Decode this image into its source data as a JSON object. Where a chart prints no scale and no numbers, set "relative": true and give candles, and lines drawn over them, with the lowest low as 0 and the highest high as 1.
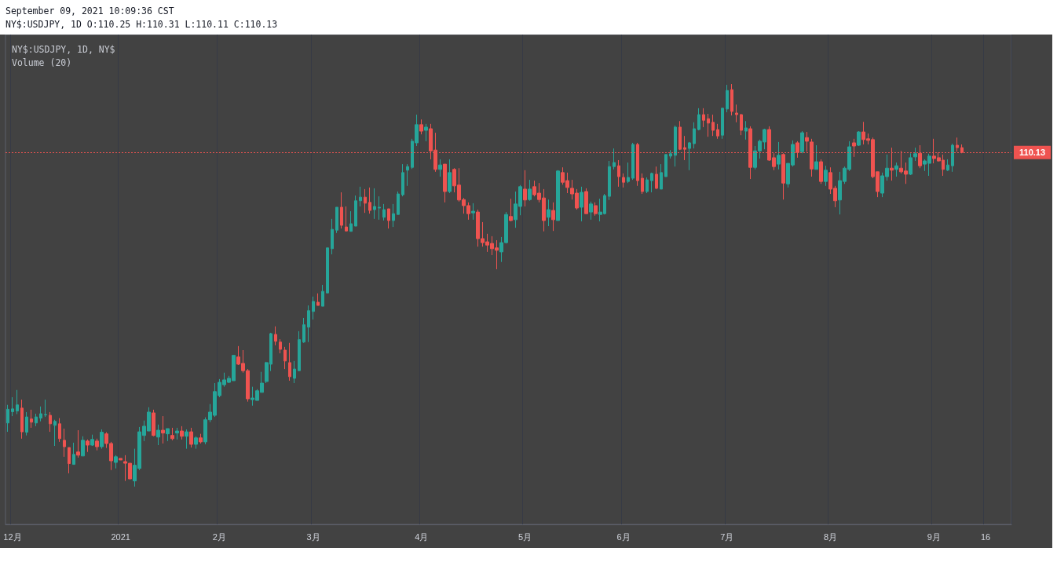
{
  "chart_data": {
    "type": "candlestick",
    "title": "September 09, 2021 10:09:36 CST",
    "subtitle": "NY$:USDJPY, 1D O:110.25 H:110.31 L:110.11 C:110.13",
    "annotations": [
      "NY$:USDJPY, 1D, NY$",
      "Volume (20)",
      "110.13"
    ],
    "relative": true,
    "grid": "x",
    "colors": [
      "#26a69a",
      "#26a69a",
      "#26a69a",
      "#ef5350",
      "#26a69a",
      "#ef5350",
      "#26a69a",
      "#26a69a",
      "#26a69a",
      "#ef5350",
      "#26a69a",
      "#ef5350",
      "#ef5350",
      "#ef5350",
      "#26a69a",
      "#ef5350",
      "#26a69a",
      "#ef5350",
      "#26a69a",
      "#ef5350",
      "#26a69a",
      "#ef5350",
      "#ef5350",
      "#26a69a",
      "#ef5350",
      "#ef5350",
      "#ef5350",
      "#26a69a",
      "#26a69a",
      "#26a69a",
      "#26a69a",
      "#ef5350",
      "#26a69a",
      "#ef5350",
      "#26a69a",
      "#ef5350",
      "#26a69a",
      "#ef5350",
      "#26a69a",
      "#ef5350",
      "#26a69a",
      "#ef5350",
      "#26a69a",
      "#26a69a",
      "#26a69a",
      "#26a69a",
      "#26a69a",
      "#26a69a",
      "#26a69a",
      "#ef5350",
      "#ef5350",
      "#ef5350",
      "#26a69a",
      "#26a69a",
      "#26a69a",
      "#26a69a",
      "#26a69a",
      "#ef5350",
      "#ef5350",
      "#ef5350",
      "#ef5350",
      "#26a69a",
      "#26a69a",
      "#26a69a",
      "#26a69a",
      "#26a69a",
      "#ef5350",
      "#26a69a",
      "#26a69a",
      "#26a69a",
      "#26a69a",
      "#ef5350",
      "#ef5350",
      "#26a69a",
      "#26a69a",
      "#26a69a",
      "#ef5350",
      "#ef5350",
      "#26a69a",
      "#26a69a",
      "#26a69a",
      "#ef5350",
      "#26a69a",
      "#26a69a",
      "#26a69a",
      "#26a69a",
      "#26a69a",
      "#26a69a",
      "#ef5350",
      "#26a69a",
      "#ef5350",
      "#ef5350",
      "#26a69a",
      "#ef5350",
      "#26a69a",
      "#ef5350",
      "#ef5350",
      "#ef5350",
      "#ef5350",
      "#26a69a",
      "#ef5350",
      "#ef5350",
      "#ef5350",
      "#ef5350",
      "#ef5350",
      "#26a69a",
      "#26a69a",
      "#ef5350",
      "#26a69a",
      "#26a69a",
      "#ef5350",
      "#26a69a",
      "#ef5350",
      "#ef5350",
      "#ef5350",
      "#26a69a",
      "#ef5350",
      "#26a69a",
      "#ef5350",
      "#ef5350",
      "#ef5350",
      "#ef5350",
      "#26a69a",
      "#ef5350",
      "#26a69a",
      "#ef5350",
      "#26a69a",
      "#26a69a",
      "#26a69a",
      "#26a69a",
      "#ef5350",
      "#ef5350",
      "#26a69a",
      "#26a69a",
      "#ef5350",
      "#ef5350",
      "#26a69a",
      "#26a69a",
      "#ef5350",
      "#26a69a",
      "#26a69a",
      "#26a69a",
      "#26a69a",
      "#ef5350",
      "#ef5350",
      "#26a69a",
      "#26a69a",
      "#26a69a",
      "#ef5350",
      "#ef5350",
      "#ef5350",
      "#ef5350",
      "#26a69a",
      "#26a69a",
      "#ef5350",
      "#ef5350",
      "#ef5350",
      "#26a69a",
      "#ef5350",
      "#26a69a",
      "#26a69a",
      "#26a69a",
      "#ef5350",
      "#ef5350",
      "#26a69a",
      "#ef5350",
      "#26a69a",
      "#26a69a",
      "#ef5350",
      "#26a69a",
      "#ef5350",
      "#ef5350",
      "#26a69a",
      "#ef5350",
      "#26a69a",
      "#ef5350",
      "#ef5350",
      "#26a69a",
      "#26a69a",
      "#26a69a",
      "#ef5350",
      "#26a69a",
      "#ef5350",
      "#ef5350",
      "#ef5350",
      "#ef5350",
      "#26a69a",
      "#26a69a",
      "#ef5350",
      "#26a69a",
      "#ef5350",
      "#ef5350",
      "#26a69a",
      "#26a69a",
      "#ef5350",
      "#26a69a",
      "#26a69a",
      "#ef5350",
      "#ef5350",
      "#ef5350",
      "#26a69a",
      "#26a69a",
      "#ef5350",
      "#ef5350",
      null,
      null,
      null,
      null,
      null,
      null,
      null,
      null,
      null,
      null
    ],
    "ref_lines": [
      {
        "axis": "y",
        "value": 0.83,
        "color": "#ef5350",
        "line_style": "dotted"
      }
    ],
    "categories": [
      null,
      "12月",
      null,
      null,
      null,
      null,
      null,
      null,
      null,
      null,
      null,
      null,
      null,
      null,
      null,
      null,
      null,
      null,
      null,
      null,
      null,
      null,
      null,
      null,
      "2021",
      null,
      null,
      null,
      null,
      null,
      null,
      null,
      null,
      null,
      null,
      null,
      null,
      null,
      null,
      null,
      null,
      null,
      null,
      null,
      null,
      "2月",
      null,
      null,
      null,
      null,
      null,
      null,
      null,
      null,
      null,
      null,
      null,
      null,
      null,
      null,
      null,
      null,
      null,
      null,
      null,
      "3月",
      null,
      null,
      null,
      null,
      null,
      null,
      null,
      null,
      null,
      null,
      null,
      null,
      null,
      null,
      null,
      null,
      null,
      null,
      null,
      null,
      null,
      null,
      "4月",
      null,
      null,
      null,
      null,
      null,
      null,
      null,
      null,
      null,
      null,
      null,
      null,
      null,
      null,
      null,
      null,
      null,
      null,
      null,
      null,
      null,
      "5月",
      null,
      null,
      null,
      null,
      null,
      null,
      null,
      null,
      null,
      null,
      null,
      null,
      null,
      null,
      null,
      null,
      null,
      null,
      null,
      null,
      "6月",
      null,
      null,
      null,
      null,
      null,
      null,
      null,
      null,
      null,
      null,
      null,
      null,
      null,
      null,
      null,
      null,
      null,
      null,
      null,
      null,
      null,
      "7月",
      null,
      null,
      null,
      null,
      null,
      null,
      null,
      null,
      null,
      null,
      null,
      null,
      null,
      null,
      null,
      null,
      null,
      null,
      null,
      null,
      null,
      "8月",
      null,
      null,
      null,
      null,
      null,
      null,
      null,
      null,
      null,
      null,
      null,
      null,
      null,
      null,
      null,
      null,
      null,
      null,
      null,
      null,
      null,
      "9月",
      null,
      null,
      null,
      null,
      null,
      null,
      null,
      null,
      null,
      null,
      "16",
      null,
      null,
      null,
      null,
      null
    ],
    "ohlc": [
      [
        0.158,
        0.203,
        0.136,
        0.192
      ],
      [
        0.186,
        0.222,
        0.175,
        0.193
      ],
      [
        0.188,
        0.24,
        0.18,
        0.203
      ],
      [
        0.195,
        0.216,
        0.119,
        0.136
      ],
      [
        0.135,
        0.185,
        0.127,
        0.173
      ],
      [
        0.168,
        0.191,
        0.146,
        0.16
      ],
      [
        0.158,
        0.181,
        0.15,
        0.173
      ],
      [
        0.17,
        0.199,
        0.162,
        0.181
      ],
      [
        0.178,
        0.216,
        0.173,
        0.179
      ],
      [
        0.177,
        0.185,
        0.136,
        0.156
      ],
      [
        0.152,
        0.166,
        0.101,
        0.162
      ],
      [
        0.156,
        0.17,
        0.111,
        0.119
      ],
      [
        0.115,
        0.144,
        0.074,
        0.099
      ],
      [
        0.097,
        0.097,
        0.033,
        0.057
      ],
      [
        0.055,
        0.109,
        0.055,
        0.08
      ],
      [
        0.086,
        0.14,
        0.072,
        0.078
      ],
      [
        0.076,
        0.125,
        0.076,
        0.115
      ],
      [
        0.113,
        0.117,
        0.086,
        0.103
      ],
      [
        0.103,
        0.129,
        0.101,
        0.117
      ],
      [
        0.113,
        0.119,
        0.09,
        0.099
      ],
      [
        0.099,
        0.142,
        0.094,
        0.135
      ],
      [
        0.131,
        0.135,
        0.096,
        0.107
      ],
      [
        0.107,
        0.111,
        0.041,
        0.064
      ],
      [
        0.06,
        0.078,
        0.045,
        0.074
      ],
      [
        0.07,
        0.07,
        0.066,
        0.066
      ],
      [
        0.062,
        0.078,
        0.014,
        0.058
      ],
      [
        0.058,
        0.058,
        0.019,
        0.019
      ],
      [
        0.014,
        0.094,
        0,
        0.053
      ],
      [
        0.045,
        0.148,
        0.041,
        0.136
      ],
      [
        0.127,
        0.164,
        0.113,
        0.15
      ],
      [
        0.138,
        0.197,
        0.138,
        0.185
      ],
      [
        0.183,
        0.191,
        0.125,
        0.127
      ],
      [
        0.123,
        0.154,
        0.103,
        0.14
      ],
      [
        0.14,
        0.175,
        0.107,
        0.133
      ],
      [
        0.131,
        0.144,
        0.113,
        0.144
      ],
      [
        0.127,
        0.146,
        0.115,
        0.119
      ],
      [
        0.133,
        0.146,
        0.117,
        0.138
      ],
      [
        0.138,
        0.15,
        0.117,
        0.125
      ],
      [
        0.125,
        0.142,
        0.094,
        0.136
      ],
      [
        0.136,
        0.146,
        0.097,
        0.105
      ],
      [
        0.105,
        0.125,
        0.094,
        0.121
      ],
      [
        0.121,
        0.131,
        0.107,
        0.111
      ],
      [
        0.111,
        0.172,
        0.105,
        0.166
      ],
      [
        0.166,
        0.205,
        0.16,
        0.185
      ],
      [
        0.177,
        0.257,
        0.173,
        0.236
      ],
      [
        0.226,
        0.267,
        0.222,
        0.259
      ],
      [
        0.253,
        0.283,
        0.248,
        0.265
      ],
      [
        0.259,
        0.275,
        0.257,
        0.269
      ],
      [
        0.263,
        0.326,
        0.263,
        0.326
      ],
      [
        0.322,
        0.349,
        0.302,
        0.304
      ],
      [
        0.306,
        0.339,
        0.283,
        0.288
      ],
      [
        0.288,
        0.292,
        0.211,
        0.218
      ],
      [
        0.216,
        0.248,
        0.201,
        0.22
      ],
      [
        0.214,
        0.242,
        0.214,
        0.238
      ],
      [
        0.234,
        0.285,
        0.234,
        0.257
      ],
      [
        0.261,
        0.31,
        0.257,
        0.308
      ],
      [
        0.304,
        0.382,
        0.287,
        0.38
      ],
      [
        0.378,
        0.398,
        0.351,
        0.361
      ],
      [
        0.359,
        0.366,
        0.331,
        0.341
      ],
      [
        0.339,
        0.347,
        0.292,
        0.312
      ],
      [
        0.308,
        0.357,
        0.263,
        0.273
      ],
      [
        0.269,
        0.312,
        0.257,
        0.292
      ],
      [
        0.288,
        0.386,
        0.287,
        0.365
      ],
      [
        0.359,
        0.419,
        0.357,
        0.402
      ],
      [
        0.396,
        0.45,
        0.359,
        0.437
      ],
      [
        0.435,
        0.472,
        0.415,
        0.46
      ],
      [
        0.458,
        0.48,
        0.45,
        0.45
      ],
      [
        0.448,
        0.501,
        0.448,
        0.485
      ],
      [
        0.481,
        0.593,
        0.481,
        0.593
      ],
      [
        0.591,
        0.665,
        0.577,
        0.639
      ],
      [
        0.637,
        0.694,
        0.63,
        0.694
      ],
      [
        0.694,
        0.731,
        0.641,
        0.649
      ],
      [
        0.645,
        0.696,
        0.634,
        0.635
      ],
      [
        0.634,
        0.684,
        0.634,
        0.653
      ],
      [
        0.647,
        0.723,
        0.647,
        0.71
      ],
      [
        0.71,
        0.745,
        0.696,
        0.719
      ],
      [
        0.719,
        0.739,
        0.68,
        0.704
      ],
      [
        0.706,
        0.743,
        0.678,
        0.686
      ],
      [
        0.688,
        0.741,
        0.665,
        0.696
      ],
      [
        0.692,
        0.721,
        0.663,
        0.694
      ],
      [
        0.669,
        0.702,
        0.661,
        0.688
      ],
      [
        0.69,
        0.69,
        0.641,
        0.661
      ],
      [
        0.661,
        0.702,
        0.645,
        0.678
      ],
      [
        0.676,
        0.733,
        0.676,
        0.727
      ],
      [
        0.725,
        0.801,
        0.721,
        0.78
      ],
      [
        0.786,
        0.801,
        0.747,
        0.795
      ],
      [
        0.793,
        0.864,
        0.789,
        0.858
      ],
      [
        0.854,
        0.924,
        0.846,
        0.899
      ],
      [
        0.899,
        0.912,
        0.875,
        0.883
      ],
      [
        0.885,
        0.901,
        0.858,
        0.893
      ],
      [
        0.889,
        0.901,
        0.813,
        0.834
      ],
      [
        0.836,
        0.879,
        0.782,
        0.788
      ],
      [
        0.788,
        0.813,
        0.77,
        0.799
      ],
      [
        0.801,
        0.801,
        0.706,
        0.733
      ],
      [
        0.733,
        0.813,
        0.729,
        0.78
      ],
      [
        0.788,
        0.791,
        0.731,
        0.747
      ],
      [
        0.749,
        0.791,
        0.708,
        0.712
      ],
      [
        0.713,
        0.717,
        0.678,
        0.698
      ],
      [
        0.698,
        0.706,
        0.663,
        0.678
      ],
      [
        0.68,
        0.704,
        0.663,
        0.684
      ],
      [
        0.682,
        0.688,
        0.596,
        0.616
      ],
      [
        0.616,
        0.657,
        0.596,
        0.606
      ],
      [
        0.608,
        0.628,
        0.583,
        0.6
      ],
      [
        0.604,
        0.622,
        0.575,
        0.591
      ],
      [
        0.593,
        0.612,
        0.54,
        0.587
      ],
      [
        0.583,
        0.62,
        0.558,
        0.606
      ],
      [
        0.606,
        0.682,
        0.604,
        0.676
      ],
      [
        0.671,
        0.715,
        0.659,
        0.661
      ],
      [
        0.663,
        0.733,
        0.643,
        0.702
      ],
      [
        0.696,
        0.749,
        0.674,
        0.745
      ],
      [
        0.739,
        0.786,
        0.696,
        0.712
      ],
      [
        0.713,
        0.762,
        0.71,
        0.739
      ],
      [
        0.745,
        0.76,
        0.721,
        0.725
      ],
      [
        0.729,
        0.754,
        0.706,
        0.713
      ],
      [
        0.717,
        0.739,
        0.634,
        0.661
      ],
      [
        0.669,
        0.713,
        0.647,
        0.688
      ],
      [
        0.686,
        0.706,
        0.635,
        0.663
      ],
      [
        0.661,
        0.786,
        0.661,
        0.784
      ],
      [
        0.78,
        0.793,
        0.75,
        0.756
      ],
      [
        0.76,
        0.78,
        0.729,
        0.743
      ],
      [
        0.741,
        0.762,
        0.713,
        0.727
      ],
      [
        0.729,
        0.739,
        0.688,
        0.692
      ],
      [
        0.694,
        0.745,
        0.659,
        0.731
      ],
      [
        0.733,
        0.741,
        0.678,
        0.678
      ],
      [
        0.682,
        0.708,
        0.663,
        0.702
      ],
      [
        0.698,
        0.706,
        0.673,
        0.678
      ],
      [
        0.676,
        0.715,
        0.659,
        0.682
      ],
      [
        0.678,
        0.727,
        0.676,
        0.723
      ],
      [
        0.721,
        0.809,
        0.712,
        0.795
      ],
      [
        0.795,
        0.84,
        0.788,
        0.805
      ],
      [
        0.797,
        0.811,
        0.745,
        0.77
      ],
      [
        0.768,
        0.778,
        0.743,
        0.756
      ],
      [
        0.758,
        0.805,
        0.754,
        0.768
      ],
      [
        0.766,
        0.854,
        0.762,
        0.85
      ],
      [
        0.85,
        0.854,
        0.747,
        0.76
      ],
      [
        0.766,
        0.778,
        0.727,
        0.733
      ],
      [
        0.733,
        0.768,
        0.729,
        0.762
      ],
      [
        0.76,
        0.78,
        0.731,
        0.778
      ],
      [
        0.776,
        0.795,
        0.739,
        0.741
      ],
      [
        0.739,
        0.801,
        0.739,
        0.78
      ],
      [
        0.77,
        0.825,
        0.77,
        0.825
      ],
      [
        0.821,
        0.836,
        0.815,
        0.827
      ],
      [
        0.823,
        0.897,
        0.795,
        0.893
      ],
      [
        0.893,
        0.908,
        0.836,
        0.838
      ],
      [
        0.842,
        0.871,
        0.811,
        0.838
      ],
      [
        0.84,
        0.856,
        0.786,
        0.854
      ],
      [
        0.852,
        0.905,
        0.84,
        0.889
      ],
      [
        0.887,
        0.94,
        0.885,
        0.924
      ],
      [
        0.924,
        0.94,
        0.893,
        0.91
      ],
      [
        0.914,
        0.926,
        0.869,
        0.903
      ],
      [
        0.905,
        0.924,
        0.871,
        0.885
      ],
      [
        0.887,
        0.901,
        0.864,
        0.871
      ],
      [
        0.873,
        0.94,
        0.864,
        0.94
      ],
      [
        0.938,
        0.998,
        0.93,
        0.984
      ],
      [
        0.986,
        1.0,
        0.922,
        0.932
      ],
      [
        0.928,
        0.949,
        0.905,
        0.924
      ],
      [
        0.924,
        0.926,
        0.873,
        0.885
      ],
      [
        0.883,
        0.908,
        0.862,
        0.891
      ],
      [
        0.889,
        0.895,
        0.764,
        0.793
      ],
      [
        0.793,
        0.846,
        0.788,
        0.834
      ],
      [
        0.834,
        0.862,
        0.815,
        0.858
      ],
      [
        0.856,
        0.889,
        0.838,
        0.887
      ],
      [
        0.887,
        0.895,
        0.809,
        0.811
      ],
      [
        0.817,
        0.828,
        0.786,
        0.795
      ],
      [
        0.801,
        0.856,
        0.788,
        0.823
      ],
      [
        0.825,
        0.828,
        0.713,
        0.754
      ],
      [
        0.752,
        0.803,
        0.743,
        0.803
      ],
      [
        0.799,
        0.86,
        0.795,
        0.85
      ],
      [
        0.854,
        0.858,
        0.817,
        0.83
      ],
      [
        0.832,
        0.883,
        0.828,
        0.879
      ],
      [
        0.867,
        0.881,
        0.832,
        0.858
      ],
      [
        0.856,
        0.864,
        0.77,
        0.789
      ],
      [
        0.788,
        0.848,
        0.788,
        0.807
      ],
      [
        0.807,
        0.813,
        0.752,
        0.758
      ],
      [
        0.758,
        0.797,
        0.747,
        0.786
      ],
      [
        0.78,
        0.793,
        0.727,
        0.739
      ],
      [
        0.741,
        0.747,
        0.694,
        0.71
      ],
      [
        0.712,
        0.782,
        0.676,
        0.76
      ],
      [
        0.758,
        0.795,
        0.752,
        0.791
      ],
      [
        0.788,
        0.858,
        0.784,
        0.844
      ],
      [
        0.854,
        0.864,
        0.819,
        0.846
      ],
      [
        0.848,
        0.883,
        0.846,
        0.881
      ],
      [
        0.881,
        0.906,
        0.85,
        0.862
      ],
      [
        0.864,
        0.877,
        0.85,
        0.86
      ],
      [
        0.862,
        0.867,
        0.766,
        0.77
      ],
      [
        0.782,
        0.782,
        0.719,
        0.733
      ],
      [
        0.729,
        0.78,
        0.719,
        0.772
      ],
      [
        0.77,
        0.825,
        0.76,
        0.791
      ],
      [
        0.791,
        0.842,
        0.76,
        0.786
      ],
      [
        0.788,
        0.805,
        0.77,
        0.797
      ],
      [
        0.791,
        0.834,
        0.778,
        0.782
      ],
      [
        0.784,
        0.805,
        0.752,
        0.776
      ],
      [
        0.776,
        0.828,
        0.774,
        0.817
      ],
      [
        0.819,
        0.842,
        0.809,
        0.827
      ],
      [
        0.828,
        0.848,
        0.791,
        0.797
      ],
      [
        0.801,
        0.813,
        0.784,
        0.809
      ],
      [
        0.803,
        0.827,
        0.772,
        0.821
      ],
      [
        0.821,
        0.864,
        0.803,
        0.815
      ],
      [
        0.817,
        0.83,
        0.807,
        0.809
      ],
      [
        0.811,
        0.825,
        0.772,
        0.788
      ],
      [
        0.786,
        0.813,
        0.784,
        0.799
      ],
      [
        0.797,
        0.852,
        0.782,
        0.848
      ],
      [
        0.848,
        0.867,
        0.832,
        0.842
      ],
      [
        0.842,
        0.85,
        0.828,
        0.83
      ],
      null,
      null,
      null,
      null,
      null,
      null,
      null,
      null,
      null,
      null
    ]
  }
}
